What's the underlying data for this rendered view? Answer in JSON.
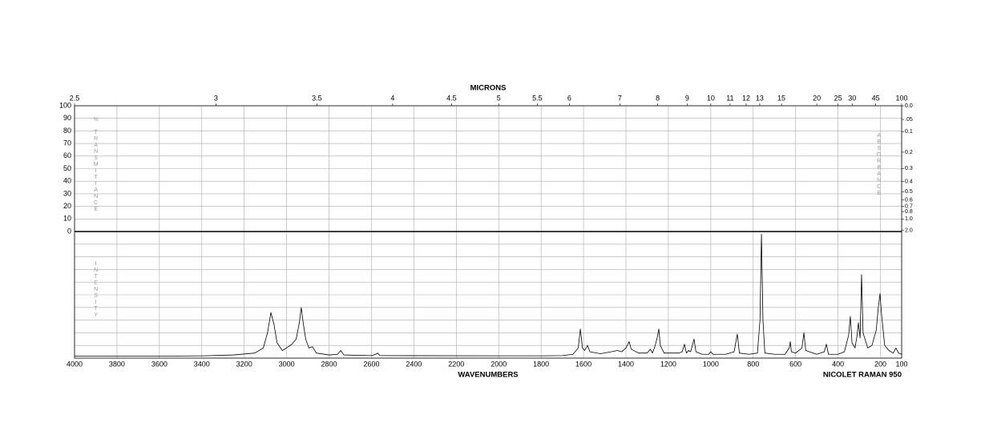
{
  "chart_data": {
    "type": "line",
    "x_label": "WAVENUMBERS",
    "x2_label": "MICRONS",
    "note": "NICOLET RAMAN 950",
    "y_label": "% TRANSMITTANCE",
    "y2_label": "ABSORBANCE",
    "y3_label": "INTENSITY",
    "xlim": [
      4000,
      100
    ],
    "xticks": [
      4000,
      3800,
      3600,
      3400,
      3200,
      3000,
      2800,
      2600,
      2400,
      2200,
      2000,
      1800,
      1600,
      1400,
      1200,
      1000,
      800,
      600,
      400,
      200,
      100
    ],
    "x2ticks": [
      2.5,
      3,
      3.5,
      4,
      4.5,
      5,
      5.5,
      6,
      7,
      8,
      9,
      10,
      11,
      12,
      13,
      15,
      20,
      25,
      30,
      45,
      100
    ],
    "ylim": [
      0,
      100
    ],
    "yticks": [
      0,
      10,
      20,
      30,
      40,
      50,
      60,
      70,
      80,
      90,
      100
    ],
    "y2ticks": [
      {
        "value": 0,
        "label": "0.0"
      },
      {
        "value": 0.05,
        "label": ".05"
      },
      0.1,
      0.2,
      0.3,
      0.4,
      0.5,
      0.6,
      0.7,
      0.8,
      {
        "value": 1,
        "label": "1.0"
      },
      {
        "value": 2,
        "label": "2.0"
      }
    ],
    "y3lim": [
      0,
      100
    ],
    "grid": true,
    "color": "#000000",
    "x": [
      4000,
      3800,
      3600,
      3400,
      3250,
      3150,
      3110,
      3090,
      3074,
      3065,
      3060,
      3045,
      3020,
      3000,
      2975,
      2955,
      2940,
      2931,
      2922,
      2910,
      2895,
      2878,
      2860,
      2800,
      2760,
      2745,
      2730,
      2600,
      2580,
      2571,
      2560,
      2000,
      1800,
      1700,
      1650,
      1625,
      1615,
      1605,
      1595,
      1581,
      1570,
      1520,
      1470,
      1440,
      1420,
      1400,
      1385,
      1375,
      1340,
      1300,
      1285,
      1275,
      1262,
      1253,
      1245,
      1238,
      1220,
      1180,
      1150,
      1135,
      1124,
      1115,
      1105,
      1095,
      1079,
      1070,
      1040,
      1010,
      1000,
      990,
      930,
      890,
      875,
      865,
      820,
      780,
      768,
      761,
      754,
      745,
      700,
      650,
      630,
      625,
      620,
      600,
      570,
      561,
      552,
      500,
      465,
      455,
      445,
      400,
      370,
      350,
      342,
      334,
      320,
      310,
      304,
      296,
      289,
      282,
      260,
      240,
      220,
      210,
      202,
      195,
      180,
      160,
      140,
      127,
      115,
      100
    ],
    "values": [
      1.5,
      1.5,
      1.5,
      1.8,
      2.5,
      4,
      8,
      20,
      36,
      30,
      27,
      12,
      6,
      8,
      11,
      15,
      28,
      40,
      28,
      15,
      8,
      9,
      4,
      2.5,
      3,
      6,
      2.5,
      2,
      3,
      4,
      2,
      1.8,
      1.8,
      2,
      3,
      8,
      23,
      8,
      6,
      10,
      5,
      3.5,
      5,
      6,
      5,
      8,
      13,
      7,
      4,
      4,
      7,
      4,
      10,
      16,
      23,
      10,
      4,
      4,
      4,
      5,
      11,
      4,
      6,
      5,
      15,
      5,
      3,
      3,
      5,
      3,
      3,
      5,
      19,
      4,
      3,
      4,
      30,
      98,
      30,
      4,
      3,
      3,
      8,
      13,
      5,
      4,
      8,
      20,
      6,
      3,
      5,
      11,
      3,
      3,
      5,
      18,
      33,
      12,
      8,
      18,
      28,
      16,
      66,
      20,
      8,
      10,
      22,
      40,
      51,
      35,
      10,
      6,
      4,
      8,
      4,
      3
    ]
  }
}
